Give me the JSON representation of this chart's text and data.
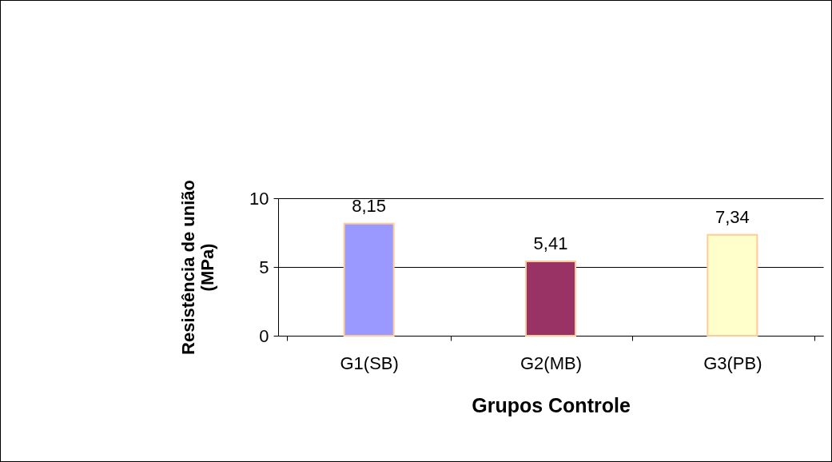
{
  "chart_data": {
    "type": "bar",
    "xlabel": "Grupos Controle",
    "ylabel": "Resistência de união\n(MPa)",
    "categories": [
      "G1(SB)",
      "G2(MB)",
      "G3(PB)"
    ],
    "values": [
      8.15,
      5.41,
      7.34
    ],
    "colors": [
      "#9999ff",
      "#993366",
      "#ffffcc"
    ],
    "value_labels": [
      "8,15",
      "5,41",
      "7,34"
    ],
    "ylim": [
      0,
      10
    ],
    "yticks": [
      0,
      5,
      10
    ],
    "grid": "y"
  }
}
